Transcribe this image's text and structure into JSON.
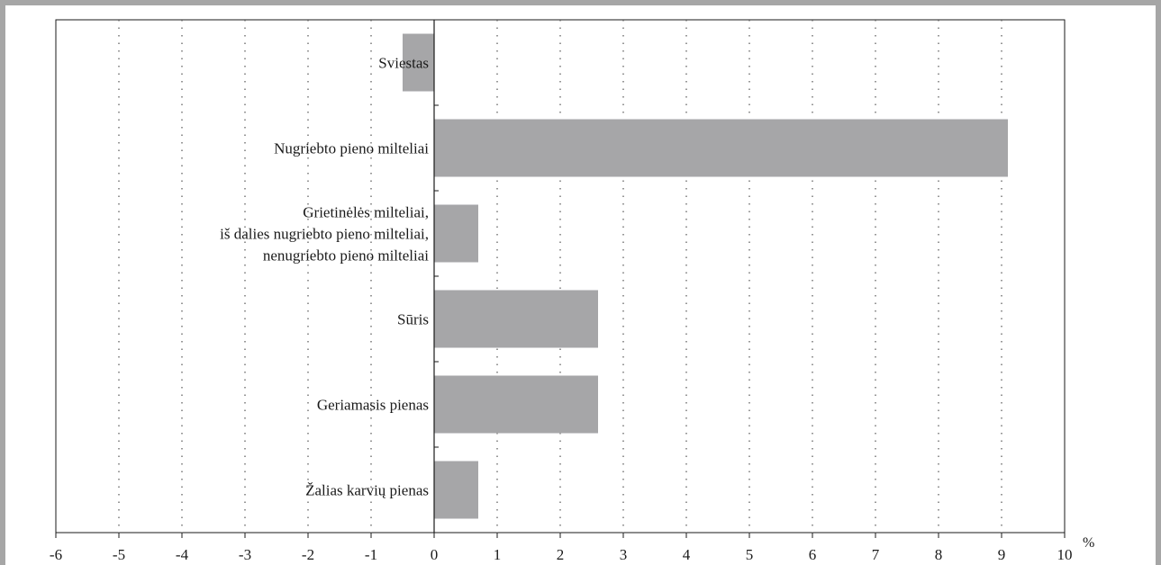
{
  "chart_data": {
    "type": "bar",
    "orientation": "horizontal",
    "categories": [
      [
        "Sviestas"
      ],
      [
        "Nugriebto pieno milteliai"
      ],
      [
        "Grietinėlės milteliai,",
        "iš dalies nugriebto pieno milteliai,",
        "nenugriebto pieno milteliai"
      ],
      [
        "Sūris"
      ],
      [
        "Geriamasis pienas"
      ],
      [
        "Žalias karvių pienas"
      ]
    ],
    "values": [
      -0.5,
      9.1,
      0.7,
      2.6,
      2.6,
      0.7
    ],
    "xlim": [
      -6,
      10
    ],
    "xticks": [
      "-6",
      "-5",
      "-4",
      "-3",
      "-2",
      "-1",
      "0",
      "1",
      "2",
      "3",
      "4",
      "5",
      "6",
      "7",
      "8",
      "9",
      "10"
    ],
    "x_unit": "%",
    "grid": "vertical-dotted",
    "colors": {
      "bar": "#a6a6a8",
      "axis": "#1a1a1a",
      "grid": "#555555",
      "frame": "#a6a6a6"
    }
  }
}
